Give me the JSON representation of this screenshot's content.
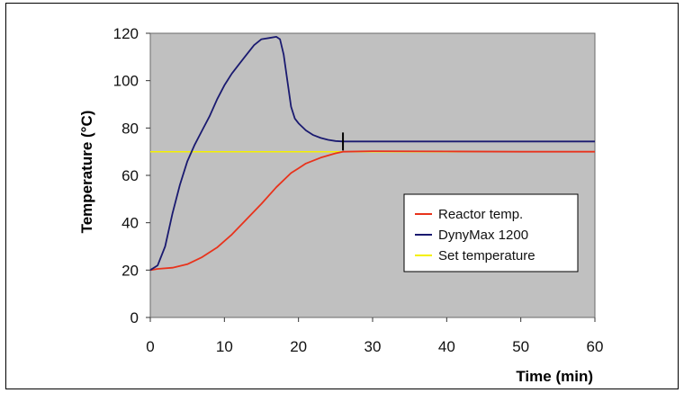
{
  "chart_data": {
    "type": "line",
    "xlabel": "Time (min)",
    "ylabel": "Temperature (°C)",
    "xlim": [
      0,
      60
    ],
    "ylim": [
      0,
      120
    ],
    "xticks": [
      "0",
      "10",
      "20",
      "30",
      "40",
      "50",
      "60"
    ],
    "yticks": [
      "0",
      "20",
      "40",
      "60",
      "80",
      "100",
      "120"
    ],
    "grid": false,
    "plot_background": "#c0c0c0",
    "legend_position": "right",
    "series": [
      {
        "name": "Reactor temp.",
        "color": "#e8331c",
        "x": [
          0,
          1,
          3,
          5,
          7,
          9,
          11,
          13,
          15,
          17,
          19,
          20,
          21,
          23,
          25,
          26,
          30,
          40,
          50,
          60
        ],
        "y": [
          20,
          20.5,
          21,
          22.5,
          25.5,
          29.5,
          35,
          41.5,
          48,
          55,
          61,
          63,
          65,
          67.5,
          69.3,
          70,
          70.2,
          70.1,
          70,
          70
        ]
      },
      {
        "name": "DynyMax 1200",
        "color": "#1a1a70",
        "x": [
          0,
          1,
          2,
          3,
          4,
          5,
          6,
          7,
          8,
          9,
          10,
          11,
          12,
          13,
          14,
          15,
          16,
          17,
          17.5,
          18,
          18.5,
          19,
          19.5,
          20,
          21,
          22,
          23,
          24,
          25,
          26,
          30,
          40,
          50,
          60
        ],
        "y": [
          20,
          22,
          30,
          44,
          56,
          66,
          73,
          79,
          85,
          92,
          98,
          103,
          107,
          111,
          115,
          117.5,
          118,
          118.5,
          117.5,
          111,
          100,
          89,
          84,
          82,
          79,
          77,
          75.8,
          75,
          74.5,
          74.3,
          74.3,
          74.3,
          74.3,
          74.3
        ]
      },
      {
        "name": "Set temperature",
        "color": "#f4f000",
        "x": [
          0,
          60
        ],
        "y": [
          70,
          70
        ]
      }
    ],
    "marker": {
      "x": 26,
      "y": 74.3
    }
  }
}
